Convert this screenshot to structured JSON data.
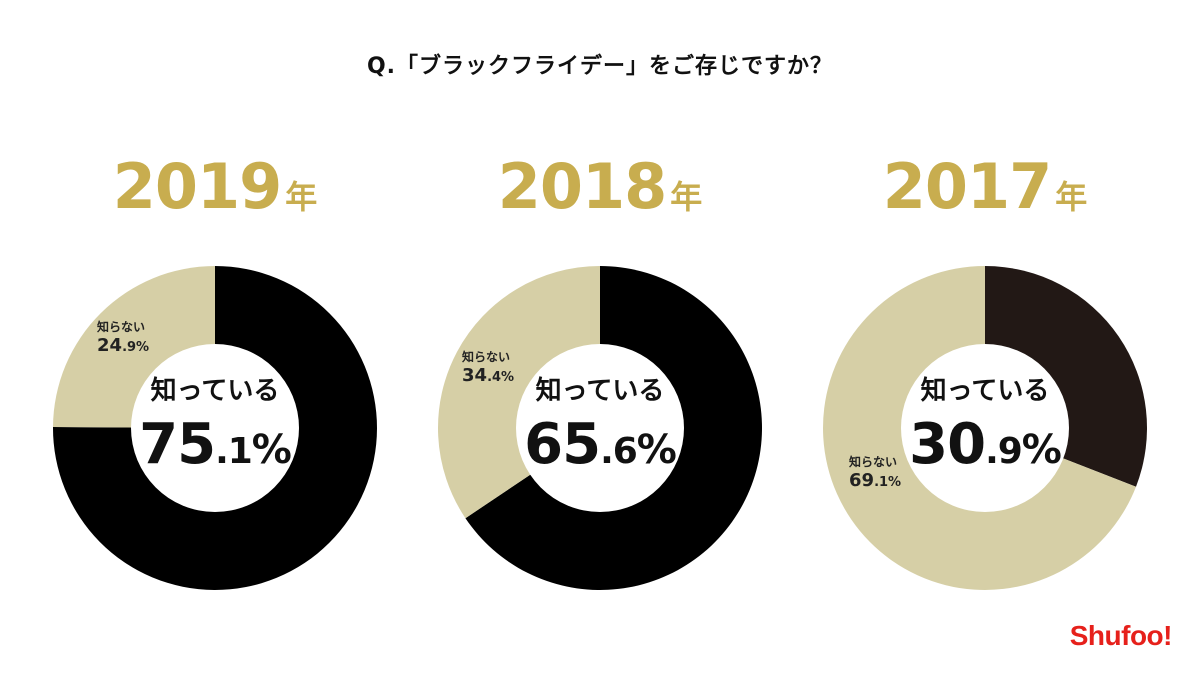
{
  "title": "Q.「ブラックフライデー」をご存じですか？",
  "brand": "Shufoo!",
  "colors": {
    "known_dark": "#000000",
    "known_2017": "#221815",
    "unknown": "#d6cfa6",
    "year": "#c8ad4f"
  },
  "chart_data": [
    {
      "type": "pie",
      "year": "2019",
      "year_unit": "年",
      "labels": [
        "知っている",
        "知らない"
      ],
      "values": [
        75.1,
        24.9
      ],
      "center_label": "知っている",
      "center_int": "75",
      "center_dec": ".1",
      "center_pct": "%",
      "outer_label": "知らない",
      "outer_int": "24",
      "outer_dec": ".9%"
    },
    {
      "type": "pie",
      "year": "2018",
      "year_unit": "年",
      "labels": [
        "知っている",
        "知らない"
      ],
      "values": [
        65.6,
        34.4
      ],
      "center_label": "知っている",
      "center_int": "65",
      "center_dec": ".6",
      "center_pct": "%",
      "outer_label": "知らない",
      "outer_int": "34",
      "outer_dec": ".4%"
    },
    {
      "type": "pie",
      "year": "2017",
      "year_unit": "年",
      "labels": [
        "知っている",
        "知らない"
      ],
      "values": [
        30.9,
        69.1
      ],
      "center_label": "知っている",
      "center_int": "30",
      "center_dec": ".9",
      "center_pct": "%",
      "outer_label": "知らない",
      "outer_int": "69",
      "outer_dec": ".1%"
    }
  ]
}
